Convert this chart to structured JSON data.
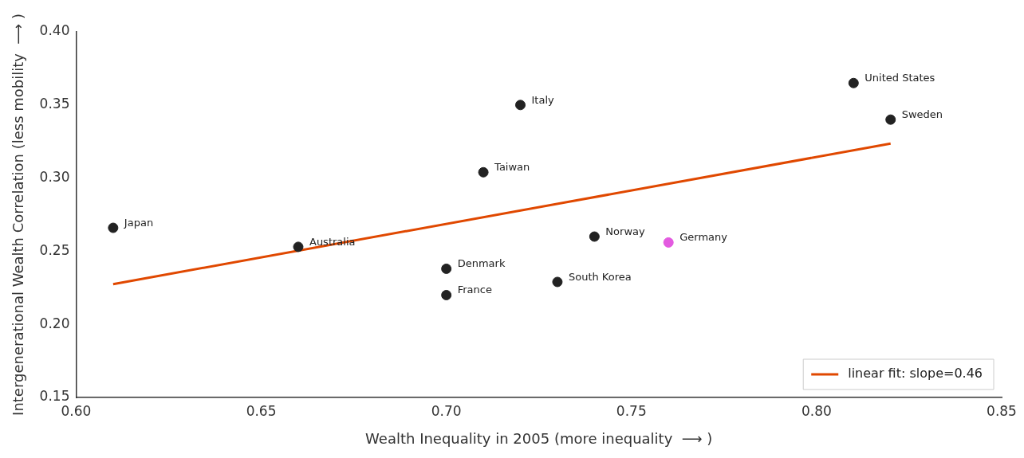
{
  "chart_data": {
    "type": "scatter",
    "xlabel": "Wealth Inequality in 2005 (more inequality  ⟶ )",
    "ylabel": "Intergenerational Wealth Correlation (less mobility  ⟶ )",
    "series": [
      {
        "marker": "circle",
        "x": [
          0.61,
          0.66,
          0.7,
          0.7,
          0.71,
          0.72,
          0.73,
          0.74,
          0.76,
          0.81,
          0.82
        ],
        "values": [
          0.266,
          0.253,
          0.238,
          0.22,
          0.304,
          0.35,
          0.229,
          0.26,
          0.256,
          0.365,
          0.34
        ],
        "colors": [
          "#222222",
          "#222222",
          "#222222",
          "#222222",
          "#222222",
          "#222222",
          "#222222",
          "#222222",
          "#e35ae0",
          "#222222",
          "#222222"
        ]
      },
      {
        "type": "line",
        "marker": "none",
        "name": "linear fit: slope=0.46",
        "color": "#e04800",
        "x": [
          0.61,
          0.82
        ],
        "values": [
          0.2275,
          0.3236
        ]
      }
    ],
    "annotations": [
      {
        "text": "Japan",
        "x": 0.61,
        "y": 0.266
      },
      {
        "text": "Australia",
        "x": 0.66,
        "y": 0.253
      },
      {
        "text": "Denmark",
        "x": 0.7,
        "y": 0.238
      },
      {
        "text": "France",
        "x": 0.7,
        "y": 0.22
      },
      {
        "text": "Taiwan",
        "x": 0.71,
        "y": 0.304
      },
      {
        "text": "Italy",
        "x": 0.72,
        "y": 0.35
      },
      {
        "text": "South Korea",
        "x": 0.73,
        "y": 0.229
      },
      {
        "text": "Norway",
        "x": 0.74,
        "y": 0.26
      },
      {
        "text": "Germany",
        "x": 0.76,
        "y": 0.256
      },
      {
        "text": "United States",
        "x": 0.81,
        "y": 0.365
      },
      {
        "text": "Sweden",
        "x": 0.82,
        "y": 0.34
      }
    ],
    "xlim": [
      0.6,
      0.85
    ],
    "xticks": [
      {
        "value": 0.6,
        "label": "0.60"
      },
      {
        "value": 0.65,
        "label": "0.65"
      },
      {
        "value": 0.7,
        "label": "0.70"
      },
      {
        "value": 0.75,
        "label": "0.75"
      },
      {
        "value": 0.8,
        "label": "0.80"
      },
      {
        "value": 0.85,
        "label": "0.85"
      }
    ],
    "ylim": [
      0.15,
      0.4
    ],
    "yticks": [
      {
        "value": 0.15,
        "label": "0.15"
      },
      {
        "value": 0.2,
        "label": "0.20"
      },
      {
        "value": 0.25,
        "label": "0.25"
      },
      {
        "value": 0.3,
        "label": "0.30"
      },
      {
        "value": 0.35,
        "label": "0.35"
      },
      {
        "value": 0.4,
        "label": "0.40"
      }
    ],
    "grid": false,
    "legend": "bottom right"
  }
}
